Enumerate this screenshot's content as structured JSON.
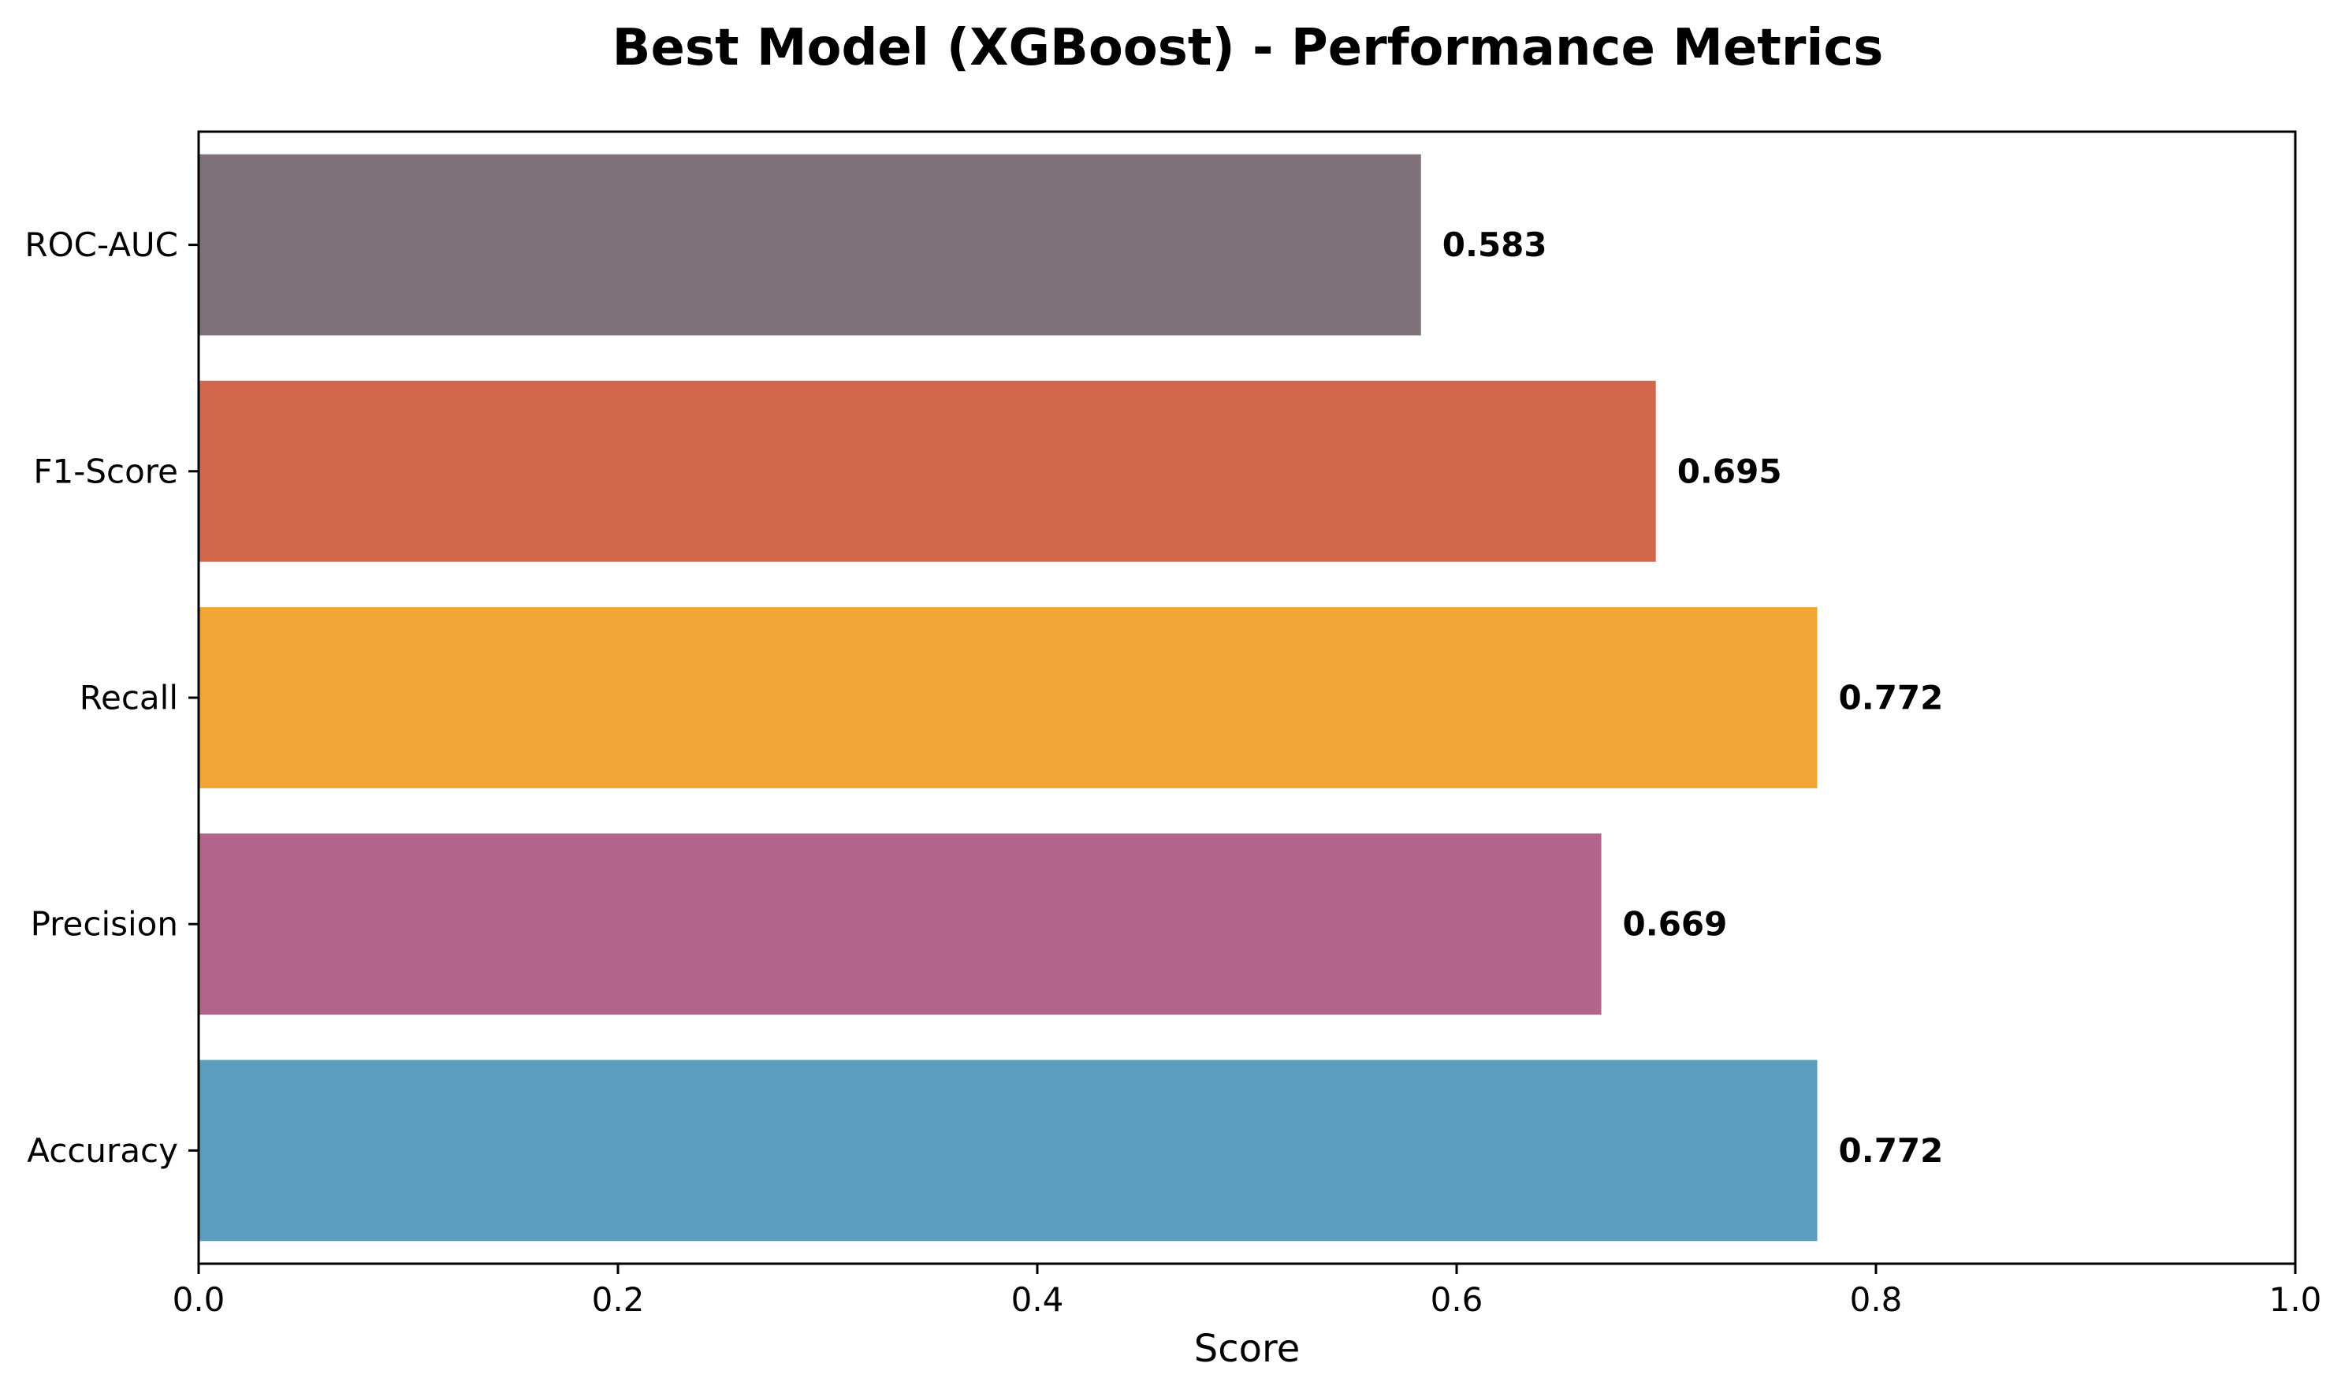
{
  "chart_data": {
    "type": "bar",
    "orientation": "horizontal",
    "title": "Best Model (XGBoost) - Performance Metrics",
    "xlabel": "Score",
    "ylabel": "",
    "xlim": [
      0,
      1.0
    ],
    "xticks": [
      "0.0",
      "0.2",
      "0.4",
      "0.6",
      "0.8",
      "1.0"
    ],
    "grid": false,
    "categories": [
      "Accuracy",
      "Precision",
      "Recall",
      "F1-Score",
      "ROC-AUC"
    ],
    "values": [
      0.772,
      0.669,
      0.772,
      0.695,
      0.583
    ],
    "value_labels": [
      "0.772",
      "0.669",
      "0.772",
      "0.695",
      "0.583"
    ],
    "colors": [
      "#5A9DBD",
      "#B4648C",
      "#F1A535",
      "#D3674D",
      "#80707A"
    ]
  }
}
